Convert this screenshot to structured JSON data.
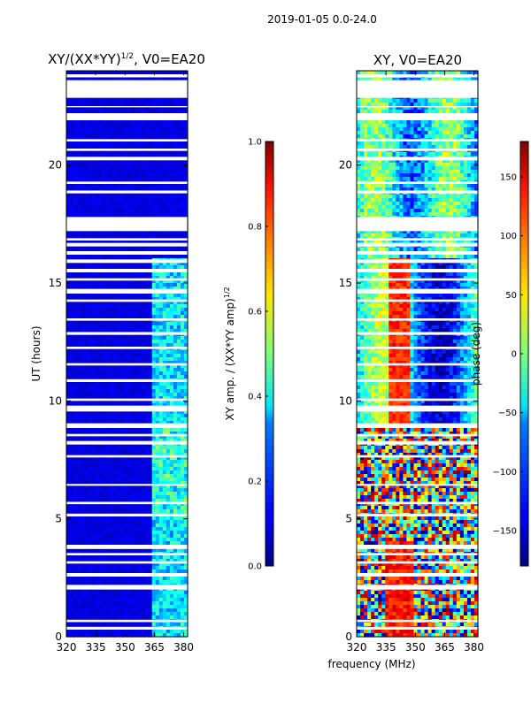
{
  "suptitle": "2019-01-05 0.0-24.0",
  "chart_data": [
    {
      "type": "heatmap",
      "title": "XY/(XX*YY)^1/2, V0=EA20",
      "title_main": "XY/(XX*YY)",
      "title_sup": "1/2",
      "title_tail": ", V0=EA20",
      "xlabel": "",
      "ylabel": "UT (hours)",
      "xlim": [
        320,
        382
      ],
      "ylim": [
        0,
        24
      ],
      "xticks": [
        "320",
        "335",
        "350",
        "365",
        "380"
      ],
      "xtick_values": [
        320,
        335,
        350,
        365,
        380
      ],
      "yticks": [
        "0",
        "5",
        "10",
        "15",
        "20"
      ],
      "ytick_values": [
        0,
        5,
        10,
        15,
        20
      ],
      "colormap": "jet",
      "colorbar": {
        "label_main": "XY amp. / (XX*YY amp)",
        "label_sup": "1/2",
        "range": [
          0.0,
          1.0
        ],
        "ticks": [
          "0.0",
          "0.2",
          "0.4",
          "0.6",
          "0.8",
          "1.0"
        ],
        "tick_values": [
          0.0,
          0.2,
          0.4,
          0.6,
          0.8,
          1.0
        ]
      },
      "low_band_value": 0.07,
      "high_band_start_mhz": 363,
      "high_band_value": 0.3
    },
    {
      "type": "heatmap",
      "title": "XY, V0=EA20",
      "xlabel": "frequency (MHz)",
      "ylabel": "",
      "xlim": [
        320,
        382
      ],
      "ylim": [
        0,
        24
      ],
      "xticks": [
        "320",
        "335",
        "350",
        "365",
        "380"
      ],
      "xtick_values": [
        320,
        335,
        350,
        365,
        380
      ],
      "yticks": [
        "0",
        "5",
        "10",
        "15",
        "20"
      ],
      "ytick_values": [
        0,
        5,
        10,
        15,
        20
      ],
      "colormap": "jet",
      "colorbar": {
        "label": "phase (deg)",
        "range": [
          -180,
          180
        ],
        "ticks": [
          "−150",
          "−100",
          "−50",
          "0",
          "50",
          "100",
          "150"
        ],
        "tick_values": [
          -150,
          -100,
          -50,
          0,
          50,
          100,
          150
        ]
      }
    }
  ],
  "blank_hours": [
    [
      0.3,
      0.42
    ],
    [
      0.62,
      0.72
    ],
    [
      2.0,
      2.2
    ],
    [
      2.55,
      2.7
    ],
    [
      3.1,
      3.2
    ],
    [
      3.45,
      3.55
    ],
    [
      3.72,
      3.9
    ],
    [
      5.1,
      5.22
    ],
    [
      5.62,
      5.72
    ],
    [
      6.4,
      6.48
    ],
    [
      7.6,
      7.7
    ],
    [
      8.15,
      8.3
    ],
    [
      8.5,
      8.6
    ],
    [
      8.85,
      9.05
    ],
    [
      9.55,
      9.8
    ],
    [
      10.0,
      10.1
    ],
    [
      10.8,
      10.92
    ],
    [
      11.5,
      11.6
    ],
    [
      12.2,
      12.3
    ],
    [
      12.8,
      12.92
    ],
    [
      13.4,
      13.5
    ],
    [
      14.2,
      14.3
    ],
    [
      14.55,
      14.75
    ],
    [
      15.1,
      15.2
    ],
    [
      15.45,
      15.6
    ],
    [
      15.85,
      16.0
    ],
    [
      16.2,
      16.35
    ],
    [
      16.55,
      16.7
    ],
    [
      16.8,
      16.9
    ],
    [
      17.2,
      17.8
    ],
    [
      18.8,
      18.92
    ],
    [
      19.2,
      19.3
    ],
    [
      20.2,
      20.35
    ],
    [
      20.6,
      20.7
    ],
    [
      21.0,
      21.1
    ],
    [
      21.9,
      22.2
    ],
    [
      22.45,
      22.5
    ],
    [
      22.85,
      23.6
    ],
    [
      23.72,
      23.85
    ]
  ]
}
